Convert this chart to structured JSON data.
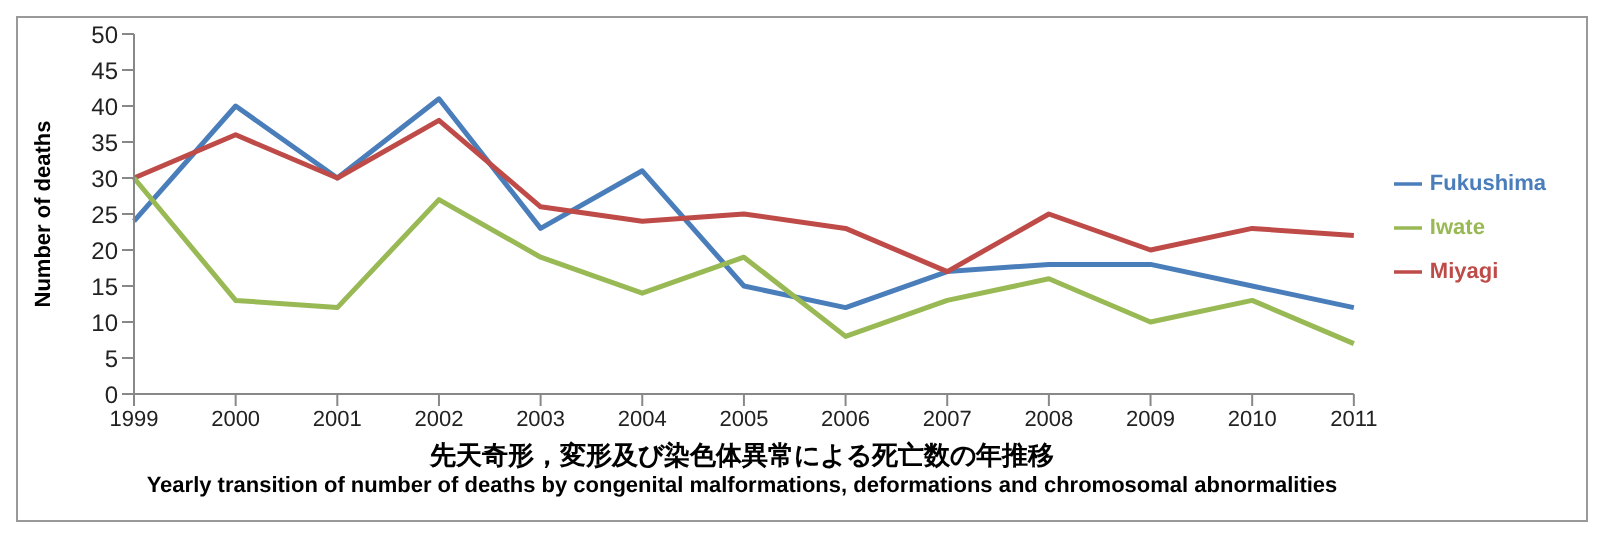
{
  "chart_data": {
    "type": "line",
    "xlabel": "先天奇形，変形及び染色体異常による死亡数の年推移",
    "ylabel": "Number of deaths",
    "annotations": [
      "Yearly transition of number of deaths by congenital malformations, deformations and chromosomal abnormalities"
    ],
    "categories": [
      "1999",
      "2000",
      "2001",
      "2002",
      "2003",
      "2004",
      "2005",
      "2006",
      "2007",
      "2008",
      "2009",
      "2010",
      "2011"
    ],
    "series": [
      {
        "name": "Fukushima",
        "color": "#4a7ebb",
        "values": [
          24,
          40,
          30,
          41,
          23,
          31,
          15,
          12,
          17,
          18,
          18,
          15,
          12
        ]
      },
      {
        "name": "Miyagi",
        "color": "#be4b48",
        "values": [
          30,
          36,
          30,
          38,
          26,
          24,
          25,
          23,
          17,
          25,
          20,
          23,
          22
        ]
      },
      {
        "name": "Iwate",
        "color": "#98b954",
        "values": [
          30,
          13,
          12,
          27,
          19,
          14,
          19,
          8,
          13,
          16,
          10,
          13,
          7
        ]
      }
    ],
    "ylim": [
      0,
      50
    ],
    "yticks": [
      0,
      5,
      10,
      15,
      20,
      25,
      30,
      35,
      40,
      45,
      50
    ],
    "grid": false,
    "legend": "right",
    "marker": "none",
    "line_style": "solid"
  }
}
